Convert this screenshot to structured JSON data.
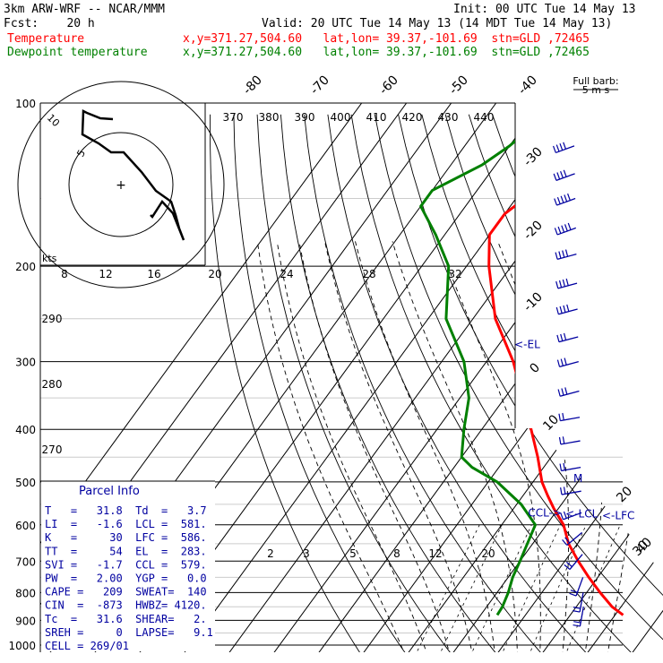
{
  "header": {
    "model": "3km ARW-WRF -- NCAR/MMM",
    "init": "Init: 00 UTC Tue 14 May 13",
    "fcst": "Fcst:    20 h",
    "valid": "Valid: 20 UTC Tue 14 May 13 (14 MDT Tue 14 May 13)",
    "temp_label": "Temperature",
    "temp_info": "x,y=371.27,504.60   lat,lon= 39.37,-101.69  stn=GLD ,72465",
    "dew_label": "Dewpoint temperature",
    "dew_info": "x,y=371.27,504.60   lat,lon= 39.37,-101.69  stn=GLD ,72465"
  },
  "colors": {
    "temperature": "#ff0000",
    "dewpoint": "#008000",
    "parcel_info": "#0000a0",
    "barbs": "#0000a0",
    "grid": "#000000",
    "background": "#ffffff"
  },
  "chart_data": {
    "type": "skew-t",
    "y_axis": {
      "scale": "log-pressure",
      "unit": "hPa",
      "ylim": [
        1000,
        100
      ],
      "ticks": [
        "100",
        "200",
        "300",
        "400",
        "500",
        "600",
        "700",
        "800",
        "900",
        "1000"
      ]
    },
    "isotherm_labels": [
      "-80",
      "-70",
      "-60",
      "-50",
      "-40",
      "-30",
      "-20",
      "-10",
      "0",
      "10",
      "20",
      "30",
      "40"
    ],
    "mixing_ratio_labels": [
      "2",
      "3",
      "5",
      "8",
      "12",
      "20"
    ],
    "theta_e_labels_top": [
      "370",
      "380",
      "390",
      "400",
      "410",
      "420",
      "430",
      "440"
    ],
    "theta_e_labels_left": [
      "290",
      "280",
      "270"
    ],
    "series": [
      {
        "name": "Temperature",
        "points": [
          {
            "p": 880,
            "t": 31.8
          },
          {
            "p": 850,
            "t": 28
          },
          {
            "p": 800,
            "t": 23
          },
          {
            "p": 750,
            "t": 18
          },
          {
            "p": 700,
            "t": 13
          },
          {
            "p": 650,
            "t": 8
          },
          {
            "p": 600,
            "t": 3.8
          },
          {
            "p": 560,
            "t": -1
          },
          {
            "p": 530,
            "t": -4.5
          },
          {
            "p": 500,
            "t": -8
          },
          {
            "p": 450,
            "t": -13
          },
          {
            "p": 400,
            "t": -19
          },
          {
            "p": 350,
            "t": -26
          },
          {
            "p": 300,
            "t": -34
          },
          {
            "p": 250,
            "t": -45
          },
          {
            "p": 200,
            "t": -55
          },
          {
            "p": 175,
            "t": -60
          },
          {
            "p": 160,
            "t": -60
          },
          {
            "p": 150,
            "t": -58
          },
          {
            "p": 135,
            "t": -57
          },
          {
            "p": 120,
            "t": -58
          },
          {
            "p": 110,
            "t": -58.5
          },
          {
            "p": 103,
            "t": -58
          }
        ]
      },
      {
        "name": "Dewpoint temperature",
        "points": [
          {
            "p": 880,
            "t": 3.7
          },
          {
            "p": 850,
            "t": 3.5
          },
          {
            "p": 800,
            "t": 2.5
          },
          {
            "p": 750,
            "t": 1
          },
          {
            "p": 700,
            "t": 0
          },
          {
            "p": 650,
            "t": -1.2
          },
          {
            "p": 600,
            "t": -2.5
          },
          {
            "p": 550,
            "t": -9
          },
          {
            "p": 500,
            "t": -18
          },
          {
            "p": 470,
            "t": -26
          },
          {
            "p": 450,
            "t": -30
          },
          {
            "p": 400,
            "t": -34
          },
          {
            "p": 350,
            "t": -38
          },
          {
            "p": 300,
            "t": -45
          },
          {
            "p": 250,
            "t": -56
          },
          {
            "p": 200,
            "t": -64
          },
          {
            "p": 175,
            "t": -72
          },
          {
            "p": 155,
            "t": -80
          },
          {
            "p": 145,
            "t": -80
          },
          {
            "p": 130,
            "t": -73
          },
          {
            "p": 120,
            "t": -70
          },
          {
            "p": 110,
            "t": -68
          },
          {
            "p": 102,
            "t": -66
          }
        ]
      }
    ],
    "annotations": [
      {
        "text": "<-EL",
        "p": 283,
        "t": -36
      },
      {
        "text": "CCL->",
        "p": 579,
        "t": -5.5
      },
      {
        "text": "<-LCL",
        "p": 581,
        "t": 3
      },
      {
        "text": "<-LFC",
        "p": 586,
        "t": 11.5
      },
      {
        "text": "M",
        "p": 500,
        "t": -1
      }
    ]
  },
  "hodograph": {
    "unit_label": "kts",
    "speed_labels": [
      "8",
      "12",
      "16",
      "20",
      "24",
      "28",
      "32"
    ],
    "ring_labels": [
      "10",
      "5"
    ],
    "center_marker": "+"
  },
  "parcel_info": {
    "title": "Parcel Info",
    "rows": [
      "T   =   31.8  Td  =   3.7",
      "LI  =   -1.6  LCL =  581.",
      "K   =     30  LFC =  586.",
      "TT  =     54  EL  =  283.",
      "SVI =   -1.7  CCL =  579.",
      "PW  =   2.00  YGP =   0.0",
      "CAPE =   209  SWEAT=  140",
      "CIN  =  -873  HWBZ= 4120.",
      "Tc  =   31.6  SHEAR=   2.",
      "SREH =     0  LAPSE=   9.1",
      "CELL = 269/01"
    ]
  },
  "wind_barbs": {
    "title": "Full barb:",
    "unit": "5 m s",
    "levels": [
      {
        "p": 120,
        "dir": 250,
        "speed_ms": 20
      },
      {
        "p": 135,
        "dir": 250,
        "speed_ms": 20
      },
      {
        "p": 150,
        "dir": 250,
        "speed_ms": 25
      },
      {
        "p": 170,
        "dir": 250,
        "speed_ms": 25
      },
      {
        "p": 190,
        "dir": 255,
        "speed_ms": 20
      },
      {
        "p": 215,
        "dir": 255,
        "speed_ms": 20
      },
      {
        "p": 240,
        "dir": 255,
        "speed_ms": 20
      },
      {
        "p": 270,
        "dir": 255,
        "speed_ms": 15
      },
      {
        "p": 300,
        "dir": 255,
        "speed_ms": 15
      },
      {
        "p": 340,
        "dir": 255,
        "speed_ms": 15
      },
      {
        "p": 380,
        "dir": 260,
        "speed_ms": 10
      },
      {
        "p": 420,
        "dir": 260,
        "speed_ms": 10
      },
      {
        "p": 470,
        "dir": 260,
        "speed_ms": 10
      },
      {
        "p": 520,
        "dir": 260,
        "speed_ms": 10
      },
      {
        "p": 570,
        "dir": 250,
        "speed_ms": 10
      },
      {
        "p": 620,
        "dir": 230,
        "speed_ms": 10
      },
      {
        "p": 680,
        "dir": 220,
        "speed_ms": 10
      },
      {
        "p": 750,
        "dir": 200,
        "speed_ms": 10
      },
      {
        "p": 800,
        "dir": 190,
        "speed_ms": 10
      },
      {
        "p": 850,
        "dir": 190,
        "speed_ms": 10
      }
    ]
  }
}
